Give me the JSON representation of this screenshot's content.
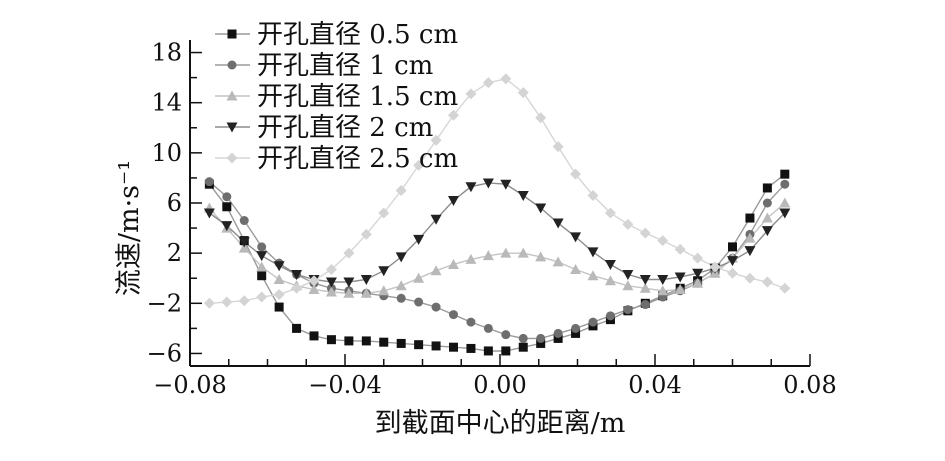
{
  "chart_data": {
    "type": "line",
    "xlabel": "到截面中心的距离/m",
    "ylabel": "流速/m·s⁻¹",
    "xlim": [
      -0.08,
      0.08
    ],
    "ylim": [
      -7,
      19
    ],
    "xticks": [
      -0.08,
      -0.04,
      0.0,
      0.04,
      0.08
    ],
    "xtick_labels": [
      "−0.08",
      "−0.04",
      "0.00",
      "0.04",
      "0.08"
    ],
    "yticks": [
      -6,
      -2,
      2,
      6,
      10,
      14,
      18
    ],
    "ytick_labels": [
      "−6",
      "−2",
      "2",
      "6",
      "10",
      "14",
      "18"
    ],
    "grid": false,
    "legend_position": "top-left",
    "series": [
      {
        "name": "开孔直径 0.5 cm",
        "marker": "square",
        "color": "#111111",
        "line_color": "#9a9a9a",
        "x": [
          -0.075,
          -0.0705,
          -0.066,
          -0.0615,
          -0.057,
          -0.0525,
          -0.048,
          -0.0435,
          -0.039,
          -0.0345,
          -0.03,
          -0.0255,
          -0.021,
          -0.0165,
          -0.012,
          -0.0075,
          -0.003,
          0.0015,
          0.006,
          0.0105,
          0.015,
          0.0195,
          0.024,
          0.0285,
          0.033,
          0.0375,
          0.042,
          0.0465,
          0.051,
          0.0555,
          0.06,
          0.0645,
          0.069,
          0.0735
        ],
        "y": [
          7.5,
          5.7,
          3.0,
          0.2,
          -2.3,
          -4.0,
          -4.6,
          -4.9,
          -5.0,
          -5.0,
          -5.1,
          -5.2,
          -5.3,
          -5.4,
          -5.5,
          -5.6,
          -5.8,
          -5.8,
          -5.5,
          -5.2,
          -4.8,
          -4.4,
          -3.8,
          -3.3,
          -2.6,
          -2.0,
          -1.4,
          -0.8,
          -0.2,
          0.8,
          2.5,
          4.8,
          7.2,
          8.3
        ]
      },
      {
        "name": "开孔直径 1 cm",
        "marker": "circle",
        "color": "#6e6e6e",
        "line_color": "#9a9a9a",
        "x": [
          -0.075,
          -0.0705,
          -0.066,
          -0.0615,
          -0.057,
          -0.0525,
          -0.048,
          -0.0435,
          -0.039,
          -0.0345,
          -0.03,
          -0.0255,
          -0.021,
          -0.0165,
          -0.012,
          -0.0075,
          -0.003,
          0.0015,
          0.006,
          0.0105,
          0.015,
          0.0195,
          0.024,
          0.0285,
          0.033,
          0.0375,
          0.042,
          0.0465,
          0.051,
          0.0555,
          0.06,
          0.0645,
          0.069,
          0.0735
        ],
        "y": [
          7.7,
          6.5,
          4.6,
          2.5,
          1.2,
          0.3,
          -0.4,
          -0.8,
          -1.0,
          -1.2,
          -1.4,
          -1.6,
          -1.9,
          -2.3,
          -2.9,
          -3.5,
          -4.0,
          -4.5,
          -4.8,
          -4.8,
          -4.4,
          -4.0,
          -3.5,
          -3.0,
          -2.5,
          -2.1,
          -1.5,
          -1.0,
          -0.4,
          0.4,
          1.6,
          3.5,
          6.0,
          7.5
        ]
      },
      {
        "name": "开孔直径 1.5 cm",
        "marker": "triangle-up",
        "color": "#b9b9b9",
        "line_color": "#c4c4c4",
        "x": [
          -0.075,
          -0.0705,
          -0.066,
          -0.0615,
          -0.057,
          -0.0525,
          -0.048,
          -0.0435,
          -0.039,
          -0.0345,
          -0.03,
          -0.0255,
          -0.021,
          -0.0165,
          -0.012,
          -0.0075,
          -0.003,
          0.0015,
          0.006,
          0.0105,
          0.015,
          0.0195,
          0.024,
          0.0285,
          0.033,
          0.0375,
          0.042,
          0.0465,
          0.051,
          0.0555,
          0.06,
          0.0645,
          0.069,
          0.0735
        ],
        "y": [
          5.6,
          4.0,
          2.4,
          0.9,
          -0.1,
          -0.6,
          -0.9,
          -1.1,
          -1.2,
          -1.2,
          -1.0,
          -0.6,
          0.0,
          0.6,
          1.1,
          1.5,
          1.8,
          2.0,
          2.0,
          1.7,
          1.3,
          0.7,
          0.2,
          -0.2,
          -0.6,
          -0.8,
          -1.0,
          -0.9,
          -0.4,
          0.4,
          1.6,
          3.2,
          4.8,
          6.0
        ]
      },
      {
        "name": "开孔直径 2 cm",
        "marker": "triangle-down",
        "color": "#222222",
        "line_color": "#8c8c8c",
        "x": [
          -0.075,
          -0.0705,
          -0.066,
          -0.0615,
          -0.057,
          -0.0525,
          -0.048,
          -0.0435,
          -0.039,
          -0.0345,
          -0.03,
          -0.0255,
          -0.021,
          -0.0165,
          -0.012,
          -0.0075,
          -0.003,
          0.0015,
          0.006,
          0.0105,
          0.015,
          0.0195,
          0.024,
          0.0285,
          0.033,
          0.0375,
          0.042,
          0.0465,
          0.051,
          0.0555,
          0.06,
          0.0645,
          0.069,
          0.0735
        ],
        "y": [
          5.2,
          4.2,
          2.9,
          1.8,
          1.0,
          0.3,
          -0.1,
          -0.3,
          -0.3,
          -0.1,
          0.6,
          1.7,
          3.1,
          4.7,
          6.2,
          7.3,
          7.6,
          7.5,
          6.6,
          5.6,
          4.4,
          3.3,
          2.1,
          1.1,
          0.3,
          -0.1,
          -0.1,
          0.1,
          0.4,
          0.8,
          1.4,
          2.2,
          3.8,
          5.2
        ]
      },
      {
        "name": "开孔直径 2.5 cm",
        "marker": "diamond",
        "color": "#d4d4d4",
        "line_color": "#d6d6d6",
        "x": [
          -0.075,
          -0.0705,
          -0.066,
          -0.0615,
          -0.057,
          -0.0525,
          -0.048,
          -0.0435,
          -0.039,
          -0.0345,
          -0.03,
          -0.0255,
          -0.021,
          -0.0165,
          -0.012,
          -0.0075,
          -0.003,
          0.0015,
          0.006,
          0.0105,
          0.015,
          0.0195,
          0.024,
          0.0285,
          0.033,
          0.0375,
          0.042,
          0.0465,
          0.051,
          0.0555,
          0.06,
          0.0645,
          0.069,
          0.0735
        ],
        "y": [
          -2.0,
          -1.9,
          -1.8,
          -1.5,
          -1.3,
          -0.8,
          -0.2,
          0.7,
          2.0,
          3.5,
          5.2,
          7.0,
          9.0,
          11.0,
          13.0,
          14.7,
          15.6,
          15.9,
          14.8,
          12.8,
          10.5,
          8.3,
          6.6,
          5.2,
          4.3,
          3.6,
          3.0,
          2.3,
          1.6,
          0.9,
          0.4,
          0.0,
          -0.3,
          -0.8
        ]
      }
    ]
  }
}
